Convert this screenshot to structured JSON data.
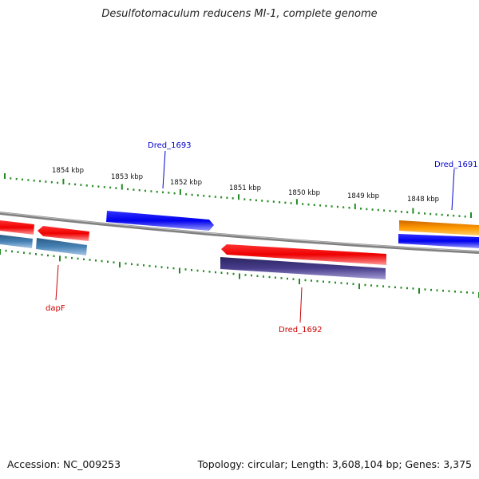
{
  "title": "Desulfotomaculum reducens MI-1, complete genome",
  "footer": {
    "accession": "Accession: NC_009253",
    "summary": "Topology: circular; Length: 3,608,104 bp; Genes: 3,375"
  },
  "scale_labels": [
    "1854 kbp",
    "1853 kbp",
    "1852 kbp",
    "1851 kbp",
    "1850 kbp",
    "1849 kbp",
    "1848 kbp"
  ],
  "gene_labels": [
    {
      "name": "Dred_1693",
      "color": "#0000cc"
    },
    {
      "name": "Dred_1691",
      "color": "#0000cc"
    },
    {
      "name": "dapF",
      "color": "#cc0000"
    },
    {
      "name": "Dred_1692",
      "color": "#cc0000"
    }
  ],
  "colors": {
    "forward_cds": "#0000ee",
    "reverse_cds": "#ee0000",
    "forward_feature": "#ff8c00",
    "reverse_feature_a": "#4682b4",
    "reverse_feature_b": "#483d8b",
    "ticks": "#228b22",
    "backbone": "#808080"
  }
}
